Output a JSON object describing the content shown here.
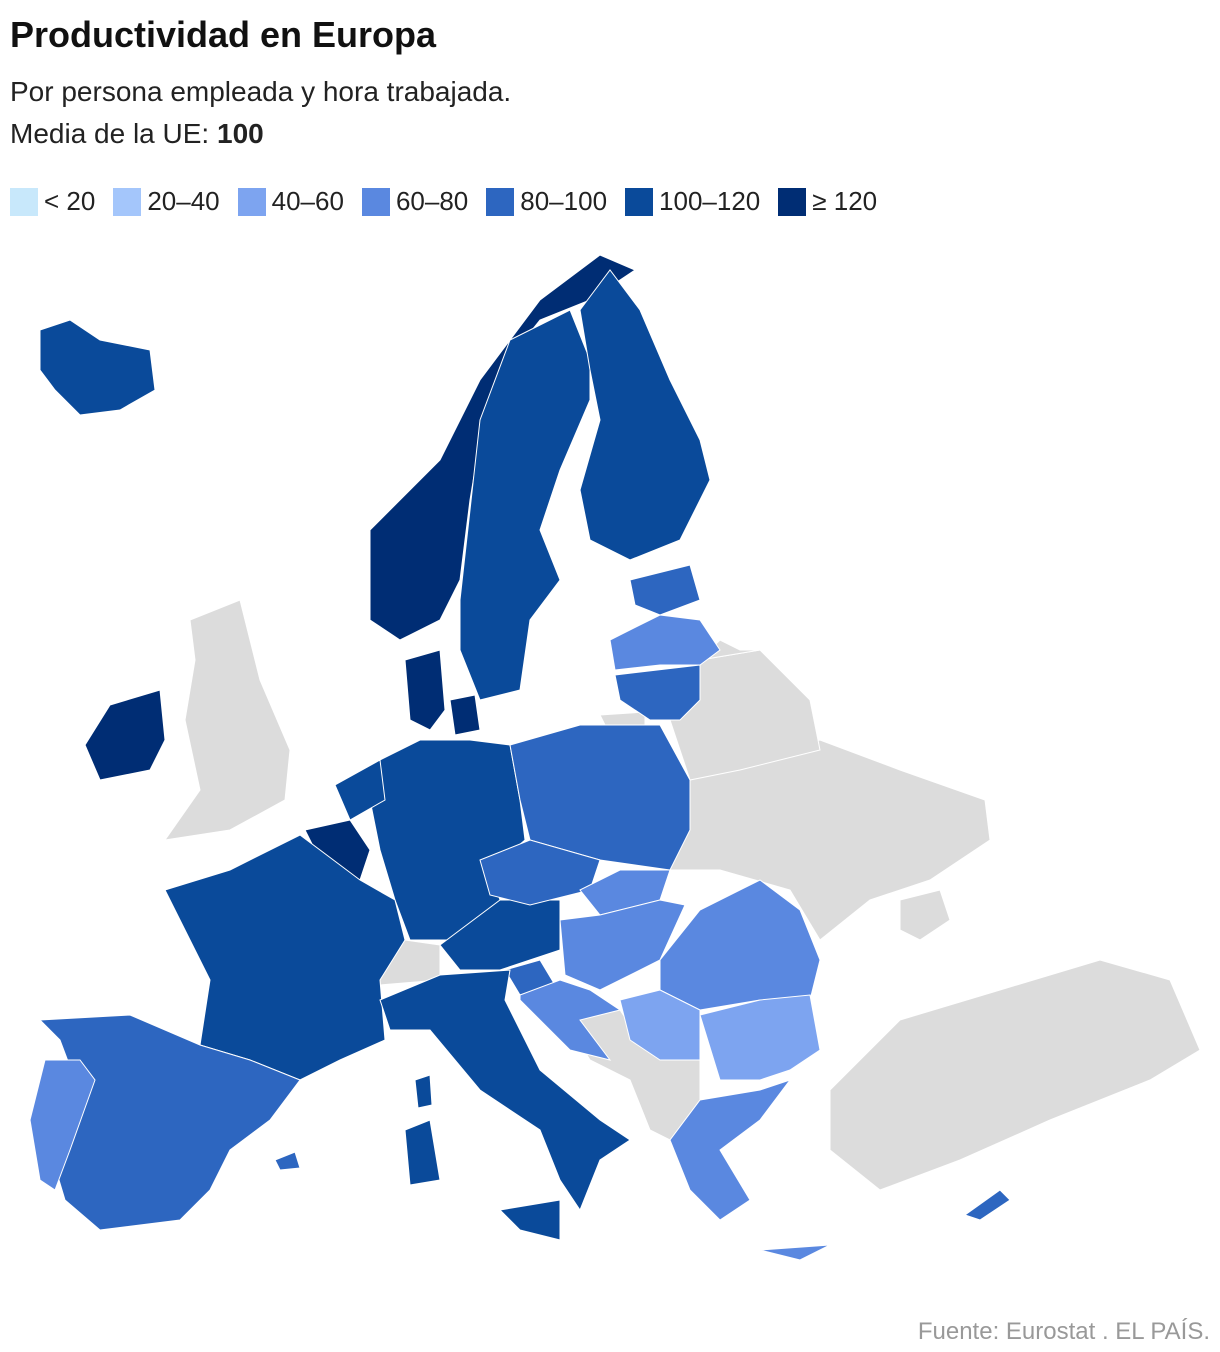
{
  "title": "Productividad en Europa",
  "subtitle": "Por persona empleada y hora trabajada.",
  "mean_label": "Media de la UE:",
  "mean_value": 100,
  "legend": [
    {
      "label": "< 20",
      "color": "#c8e8fb"
    },
    {
      "label": "20–40",
      "color": "#a4c6fb"
    },
    {
      "label": "40–60",
      "color": "#7da4f0"
    },
    {
      "label": "60–80",
      "color": "#5a88e0"
    },
    {
      "label": "80–100",
      "color": "#2d66c0"
    },
    {
      "label": "100–120",
      "color": "#0a4a9a"
    },
    {
      "label": "≥ 120",
      "color": "#002d74"
    }
  ],
  "no_data_color": "#dcdcdc",
  "source": "Fuente: Eurostat . EL PAÍS."
}
